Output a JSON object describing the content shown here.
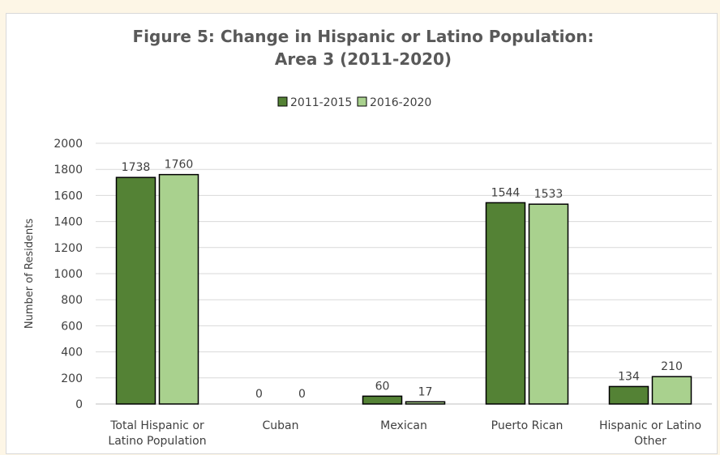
{
  "chart_data": {
    "type": "bar",
    "title": [
      "Figure 5: Change in Hispanic or Latino Population:",
      "Area 3 (2011-2020)"
    ],
    "xlabel": "",
    "ylabel": "Number of Residents",
    "ylim": [
      0,
      2000
    ],
    "yticks": [
      0,
      200,
      400,
      600,
      800,
      1000,
      1200,
      1400,
      1600,
      1800,
      2000
    ],
    "grid": true,
    "legend_position": "top",
    "categories": [
      [
        "Total Hispanic or",
        "Latino Population"
      ],
      [
        "Cuban"
      ],
      [
        "Mexican"
      ],
      [
        "Puerto Rican"
      ],
      [
        "Hispanic or Latino",
        "Other"
      ]
    ],
    "series": [
      {
        "name": "2011-2015",
        "color": "#548235",
        "values": [
          1738,
          0,
          60,
          1544,
          134
        ]
      },
      {
        "name": "2016-2020",
        "color": "#a9d18e",
        "values": [
          1760,
          0,
          17,
          1533,
          210
        ]
      }
    ]
  }
}
